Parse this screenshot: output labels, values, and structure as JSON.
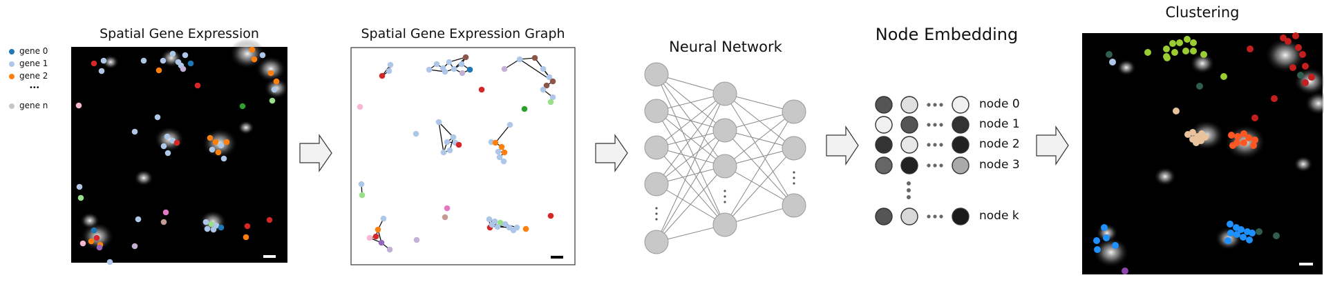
{
  "colors": {
    "gene0": "#1f77b4",
    "gene1": "#aec7e8",
    "gene2": "#ff7f0e",
    "geneN": "#c7c7c7",
    "red": "#d62728",
    "green": "#2ca02c",
    "lightgreen": "#98df8a",
    "pink": "#f7b6d2",
    "brown": "#8c564b",
    "tan": "#c49c94",
    "purple": "#9467bd",
    "lightpurple": "#c5b0d5",
    "magenta": "#e377c2",
    "node_gray": "#c8c8c8",
    "cluster_green": "#9acd32",
    "cluster_red": "#c41e1e",
    "cluster_orange": "#ff5722",
    "cluster_blue": "#1e90ff",
    "cluster_tan": "#e8c39e",
    "cluster_purple": "#8e44ad",
    "cluster_teal": "#2f5d50"
  },
  "panel1": {
    "title": "Spatial Gene Expression",
    "legend": [
      {
        "label": "gene 0",
        "color": "#1f77b4"
      },
      {
        "label": "gene 1",
        "color": "#aec7e8"
      },
      {
        "label": "gene 2",
        "color": "#ff7f0e"
      },
      {
        "label": "gene n",
        "color": "#c7c7c7"
      }
    ],
    "legend_ellipsis": "•••"
  },
  "panel2": {
    "title": "Spatial Gene Expression Graph"
  },
  "panel3": {
    "title": "Neural Network",
    "layers": [
      5,
      4,
      3
    ]
  },
  "panel4": {
    "title": "Node Embedding",
    "rows": [
      {
        "label": "node 0",
        "cells": [
          "#555555",
          "#e0e0e0",
          "#f0f0f0"
        ]
      },
      {
        "label": "node 1",
        "cells": [
          "#f0f0f0",
          "#555555",
          "#333333"
        ]
      },
      {
        "label": "node 2",
        "cells": [
          "#333333",
          "#e8e8e8",
          "#222222"
        ]
      },
      {
        "label": "node 3",
        "cells": [
          "#666666",
          "#222222",
          "#aaaaaa"
        ]
      },
      {
        "label": "node k",
        "cells": [
          "#555555",
          "#d8d8d8",
          "#1a1a1a"
        ]
      }
    ]
  },
  "panel5": {
    "title": "Clustering"
  }
}
